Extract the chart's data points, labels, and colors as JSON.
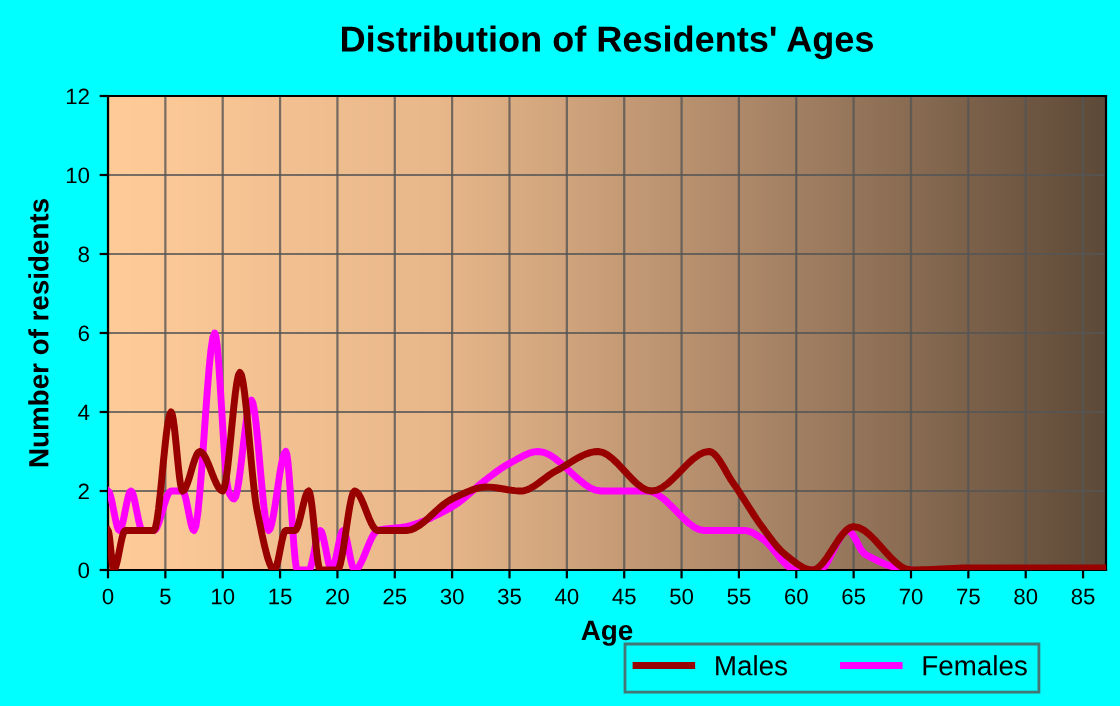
{
  "chart_data": {
    "type": "line",
    "title": "Distribution of Residents' Ages",
    "xlabel": "Age",
    "ylabel": "Number of residents",
    "series": [
      {
        "name": "Males",
        "color": "#990000",
        "x": [
          0,
          0.5,
          1.5,
          3,
          4,
          5.5,
          6.5,
          8,
          10,
          11.5,
          13,
          14.5,
          15.5,
          16.3,
          17.5,
          18.5,
          20,
          21.5,
          23.5,
          26,
          30,
          33,
          36,
          39,
          42.7,
          47.4,
          52.4,
          54.5,
          57,
          59,
          61.4,
          65,
          70,
          75,
          87
        ],
        "values": [
          1,
          0,
          1,
          1,
          1,
          4,
          2,
          3,
          2,
          5,
          1.5,
          0,
          1,
          1,
          2,
          0,
          0,
          2,
          1,
          1,
          1.8,
          2.1,
          2,
          2.5,
          3,
          2,
          3,
          2.2,
          1.1,
          0.4,
          0,
          1.1,
          0,
          0.05,
          0.05
        ]
      },
      {
        "name": "Females",
        "color": "#ff00ff",
        "x": [
          0,
          1,
          2,
          3,
          4,
          5.5,
          6.5,
          7.5,
          9.3,
          10.5,
          11,
          12.5,
          14,
          15.5,
          16.5,
          17.5,
          18.5,
          19.5,
          20.5,
          21.5,
          23.5,
          26,
          30,
          33,
          35,
          37.5,
          43,
          47,
          52,
          55.5,
          57,
          60,
          62,
          64.5,
          66,
          70
        ],
        "values": [
          2,
          1,
          2,
          1,
          1,
          2,
          2,
          1,
          6,
          2,
          1.8,
          4.3,
          1,
          3,
          0,
          0,
          1,
          0,
          1,
          0,
          1,
          1.1,
          1.6,
          2.3,
          2.7,
          3,
          2,
          2,
          1,
          1,
          0.8,
          0,
          0,
          1,
          0.4,
          0
        ]
      }
    ],
    "xlim": [
      0,
      87
    ],
    "xticks": [
      0,
      5,
      10,
      15,
      20,
      25,
      30,
      35,
      40,
      45,
      50,
      55,
      60,
      65,
      70,
      75,
      80,
      85
    ],
    "ylim": [
      0,
      12
    ],
    "yticks": [
      0,
      2,
      4,
      6,
      8,
      10,
      12
    ],
    "grid": true,
    "legend": "bottom"
  }
}
